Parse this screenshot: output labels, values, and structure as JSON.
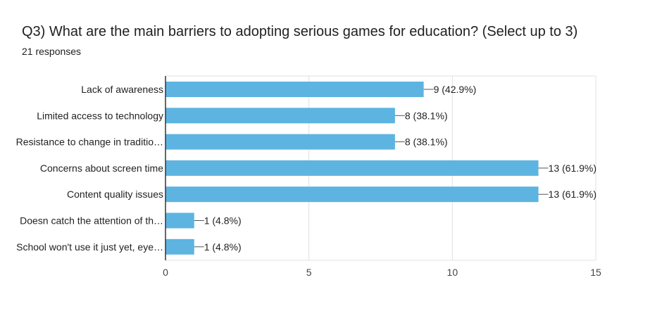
{
  "header": {
    "title": "Q3) What are the main barriers to adopting serious games for education?   (Select up to 3)",
    "subtitle": "21 responses"
  },
  "chart_data": {
    "type": "bar",
    "orientation": "horizontal",
    "categories": [
      "Lack of awareness",
      "Limited access to technology",
      "Resistance to change in traditio…",
      "Concerns about screen time",
      "Content quality issues",
      "Doesn catch the attention of th…",
      "School won't use it just yet, eye…"
    ],
    "values": [
      9,
      8,
      8,
      13,
      13,
      1,
      1
    ],
    "data_labels": [
      "9 (42.9%)",
      "8 (38.1%)",
      "8 (38.1%)",
      "13 (61.9%)",
      "13 (61.9%)",
      "1 (4.8%)",
      "1 (4.8%)"
    ],
    "xticks": [
      "0",
      "5",
      "10",
      "15"
    ],
    "xlim": [
      0,
      15
    ],
    "grid": true,
    "bar_color": "#5db4e0"
  }
}
